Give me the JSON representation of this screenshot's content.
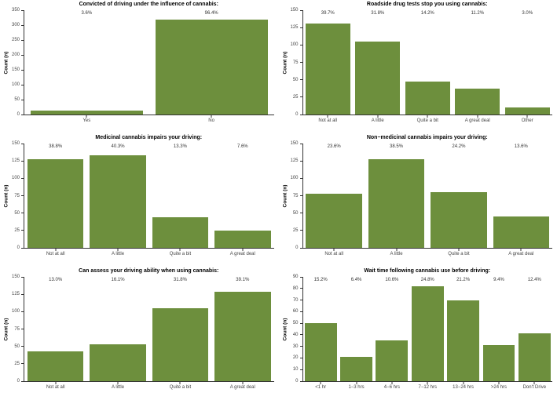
{
  "figure": {
    "description": "Six bar charts of survey responses about cannabis use and driving",
    "ylabel": "Count (n)"
  },
  "style": {
    "bar_color": "#6d8f3d",
    "axis_color": "#333333",
    "tick_label_color": "#444444",
    "title_color": "#000000"
  },
  "chart_data": [
    {
      "type": "bar",
      "title": "Convicted of driving under the influence of cannabis:",
      "categories": [
        "Yes",
        "No"
      ],
      "values": [
        12,
        318
      ],
      "percent_labels": [
        "3.6%",
        "96.4%"
      ],
      "xlabel": "",
      "ylabel": "Count (n)",
      "ylim": [
        0,
        350
      ],
      "ytick_step": 50,
      "grid": "off",
      "legend": "none"
    },
    {
      "type": "bar",
      "title": "Roadside drug tests stop you using cannabis:",
      "categories": [
        "Not at all",
        "A little",
        "Quite a bit",
        "A great deal",
        "Other"
      ],
      "values": [
        131,
        105,
        47,
        37,
        10
      ],
      "percent_labels": [
        "39.7%",
        "31.8%",
        "14.2%",
        "11.2%",
        "3.0%"
      ],
      "xlabel": "",
      "ylabel": "Count (n)",
      "ylim": [
        0,
        150
      ],
      "ytick_step": 25,
      "grid": "off",
      "legend": "none"
    },
    {
      "type": "bar",
      "title": "Medicinal cannabis impairs your driving:",
      "categories": [
        "Not at all",
        "A little",
        "Quite a bit",
        "A great deal"
      ],
      "values": [
        128,
        133,
        44,
        25
      ],
      "percent_labels": [
        "38.8%",
        "40.3%",
        "13.3%",
        "7.6%"
      ],
      "xlabel": "",
      "ylabel": "Count (n)",
      "ylim": [
        0,
        150
      ],
      "ytick_step": 25,
      "grid": "off",
      "legend": "none"
    },
    {
      "type": "bar",
      "title": "Non−medicinal cannabis impairs your driving:",
      "categories": [
        "Not at all",
        "A little",
        "Quite a bit",
        "A great deal"
      ],
      "values": [
        78,
        127,
        80,
        45
      ],
      "percent_labels": [
        "23.6%",
        "38.5%",
        "24.2%",
        "13.6%"
      ],
      "xlabel": "",
      "ylabel": "Count (n)",
      "ylim": [
        0,
        150
      ],
      "ytick_step": 25,
      "grid": "off",
      "legend": "none"
    },
    {
      "type": "bar",
      "title": "Can assess your driving ability when using cannabis:",
      "categories": [
        "Not at all",
        "A little",
        "Quite a bit",
        "A great deal"
      ],
      "values": [
        43,
        53,
        105,
        129
      ],
      "percent_labels": [
        "13.0%",
        "16.1%",
        "31.8%",
        "39.1%"
      ],
      "xlabel": "",
      "ylabel": "Count (n)",
      "ylim": [
        0,
        150
      ],
      "ytick_step": 25,
      "grid": "off",
      "legend": "none"
    },
    {
      "type": "bar",
      "title": "Wait time following cannabis use before driving:",
      "categories": [
        "<1 hr",
        "1−3 hrs",
        "4−6 hrs",
        "7−12 hrs",
        "13−24 hrs",
        ">24 hrs",
        "Don't Drive"
      ],
      "values": [
        50,
        21,
        35,
        82,
        70,
        31,
        41
      ],
      "percent_labels": [
        "15.2%",
        "6.4%",
        "10.6%",
        "24.8%",
        "21.2%",
        "9.4%",
        "12.4%"
      ],
      "xlabel": "",
      "ylabel": "Count (n)",
      "ylim": [
        0,
        90
      ],
      "ytick_step": 10,
      "grid": "off",
      "legend": "none"
    }
  ]
}
